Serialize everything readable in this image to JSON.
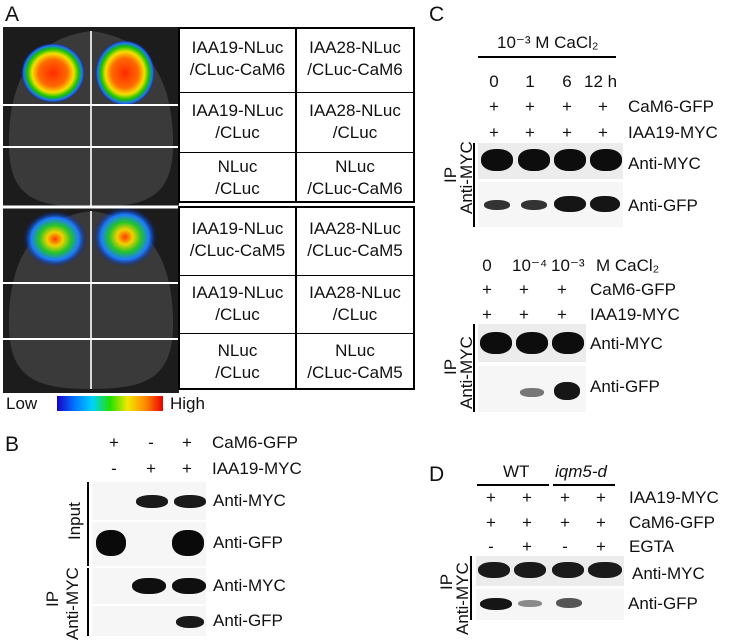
{
  "panels": {
    "A": "A",
    "B": "B",
    "C": "C",
    "D": "D"
  },
  "panelA": {
    "colorbar": {
      "low": "Low",
      "high": "High"
    },
    "table_top": [
      [
        "IAA19-NLuc",
        "/CLuc-CaM6",
        "IAA28-NLuc",
        "/CLuc-CaM6"
      ],
      [
        "IAA19-NLuc",
        "/CLuc",
        "IAA28-NLuc",
        "/CLuc"
      ],
      [
        "NLuc",
        "/CLuc",
        "NLuc",
        "/CLuc-CaM6"
      ]
    ],
    "table_bottom": [
      [
        "IAA19-NLuc",
        "/CLuc-CaM5",
        "IAA28-NLuc",
        "/CLuc-CaM5"
      ],
      [
        "IAA19-NLuc",
        "/CLuc",
        "IAA28-NLuc",
        "/CLuc"
      ],
      [
        "NLuc",
        "/CLuc",
        "NLuc",
        "/CLuc-CaM5"
      ]
    ]
  },
  "panelB": {
    "rows": [
      {
        "label": "CaM6-GFP",
        "signs": [
          "+",
          "-",
          "+"
        ]
      },
      {
        "label": "IAA19-MYC",
        "signs": [
          "-",
          "+",
          "+"
        ]
      }
    ],
    "input": "Input",
    "ip": "IP",
    "antimyc": "Anti-MYC",
    "blots": [
      "Anti-MYC",
      "Anti-GFP",
      "Anti-MYC",
      "Anti-GFP"
    ]
  },
  "panelC": {
    "top_header": "10⁻³ M CaCl₂",
    "times": [
      "0",
      "1",
      "6",
      "12 h"
    ],
    "top_rows": [
      {
        "label": "CaM6-GFP",
        "signs": [
          "+",
          "+",
          "+",
          "+"
        ]
      },
      {
        "label": "IAA19-MYC",
        "signs": [
          "+",
          "+",
          "+",
          "+"
        ]
      }
    ],
    "top_blots": [
      "Anti-MYC",
      "Anti-GFP"
    ],
    "bottom_conc": [
      "0",
      "10⁻⁴",
      "10⁻³",
      "M CaCl₂"
    ],
    "bottom_rows": [
      {
        "label": "CaM6-GFP",
        "signs": [
          "+",
          "+",
          "+"
        ]
      },
      {
        "label": "IAA19-MYC",
        "signs": [
          "+",
          "+",
          "+"
        ]
      }
    ],
    "bottom_blots": [
      "Anti-MYC",
      "Anti-GFP"
    ],
    "ip": "IP",
    "antimyc": "Anti-MYC"
  },
  "panelD": {
    "wt": "WT",
    "mutant": "iqm5-d",
    "rows": [
      {
        "label": "IAA19-MYC",
        "signs": [
          "+",
          "+",
          "+",
          "+"
        ]
      },
      {
        "label": "CaM6-GFP",
        "signs": [
          "+",
          "+",
          "+",
          "+"
        ]
      },
      {
        "label": "EGTA",
        "signs": [
          "-",
          "+",
          "-",
          "+"
        ]
      }
    ],
    "blots": [
      "Anti-MYC",
      "Anti-GFP"
    ],
    "ip": "IP",
    "antimyc": "Anti-MYC"
  }
}
